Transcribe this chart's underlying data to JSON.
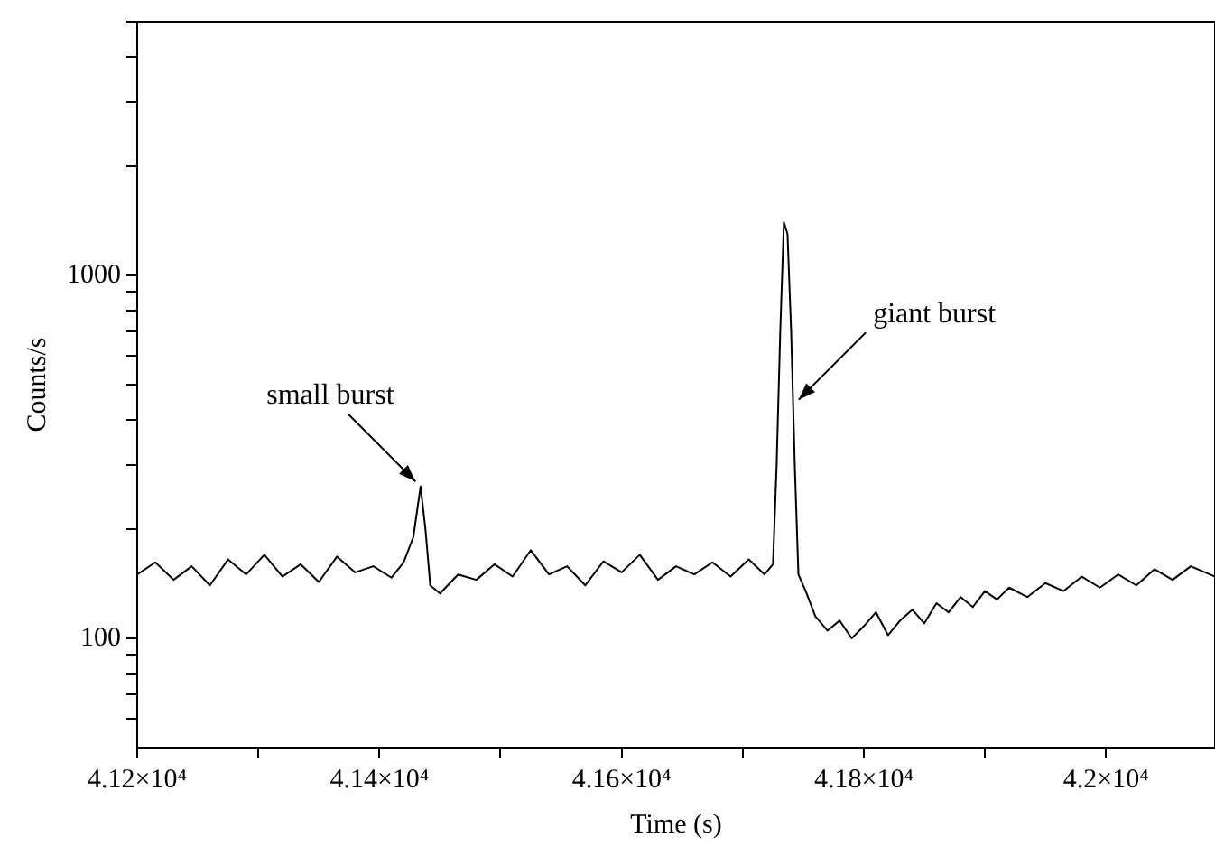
{
  "chart_data": {
    "type": "line",
    "xlabel": "Time (s)",
    "ylabel": "Counts/s",
    "log": "y",
    "grid": false,
    "line_style": "solid",
    "xlim": [
      41200,
      42090
    ],
    "ylim": [
      50,
      5000
    ],
    "xticks": [
      {
        "value": 41200,
        "label": "4.12×10⁴"
      },
      {
        "value": 41300,
        "label": null
      },
      {
        "value": 41400,
        "label": "4.14×10⁴"
      },
      {
        "value": 41500,
        "label": null
      },
      {
        "value": 41600,
        "label": "4.16×10⁴"
      },
      {
        "value": 41700,
        "label": null
      },
      {
        "value": 41800,
        "label": "4.18×10⁴"
      },
      {
        "value": 41900,
        "label": null
      },
      {
        "value": 42000,
        "label": "4.2×10⁴"
      }
    ],
    "yticks": [
      {
        "value": 60,
        "label": null
      },
      {
        "value": 70,
        "label": null
      },
      {
        "value": 80,
        "label": null
      },
      {
        "value": 90,
        "label": null
      },
      100,
      {
        "value": 200,
        "label": null
      },
      {
        "value": 300,
        "label": null
      },
      {
        "value": 400,
        "label": null
      },
      {
        "value": 500,
        "label": null
      },
      {
        "value": 600,
        "label": null
      },
      {
        "value": 700,
        "label": null
      },
      {
        "value": 800,
        "label": null
      },
      {
        "value": 900,
        "label": null
      },
      1000,
      {
        "value": 2000,
        "label": null
      },
      {
        "value": 3000,
        "label": null
      },
      {
        "value": 4000,
        "label": null
      },
      {
        "value": 5000,
        "label": null
      }
    ],
    "annotations": [
      {
        "text": "small burst",
        "x": 41434,
        "y": 262
      },
      {
        "text": "giant burst",
        "x": 41742,
        "y": 440
      }
    ],
    "series": [
      {
        "color": "#000000",
        "x": [
          41200,
          41215,
          41230,
          41245,
          41260,
          41275,
          41290,
          41305,
          41320,
          41335,
          41350,
          41365,
          41380,
          41395,
          41410,
          41420,
          41428,
          41434,
          41438,
          41442,
          41450,
          41465,
          41480,
          41495,
          41510,
          41525,
          41540,
          41555,
          41570,
          41585,
          41600,
          41615,
          41630,
          41645,
          41660,
          41675,
          41690,
          41705,
          41718,
          41725,
          41728,
          41731,
          41734,
          41737,
          41740,
          41743,
          41746,
          41752,
          41760,
          41770,
          41780,
          41790,
          41800,
          41810,
          41820,
          41830,
          41840,
          41850,
          41860,
          41870,
          41880,
          41890,
          41900,
          41910,
          41920,
          41935,
          41950,
          41965,
          41980,
          41995,
          42010,
          42025,
          42040,
          42055,
          42070,
          42090
        ],
        "values": [
          150,
          162,
          145,
          158,
          140,
          165,
          150,
          170,
          148,
          160,
          143,
          168,
          152,
          158,
          147,
          162,
          190,
          262,
          200,
          140,
          133,
          150,
          145,
          160,
          148,
          175,
          150,
          158,
          140,
          163,
          152,
          170,
          145,
          158,
          150,
          162,
          148,
          165,
          150,
          160,
          300,
          700,
          1400,
          1300,
          700,
          300,
          150,
          135,
          115,
          105,
          112,
          100,
          108,
          118,
          102,
          112,
          120,
          110,
          125,
          118,
          130,
          122,
          135,
          128,
          138,
          130,
          142,
          135,
          148,
          138,
          150,
          140,
          155,
          145,
          158,
          148
        ]
      }
    ]
  }
}
